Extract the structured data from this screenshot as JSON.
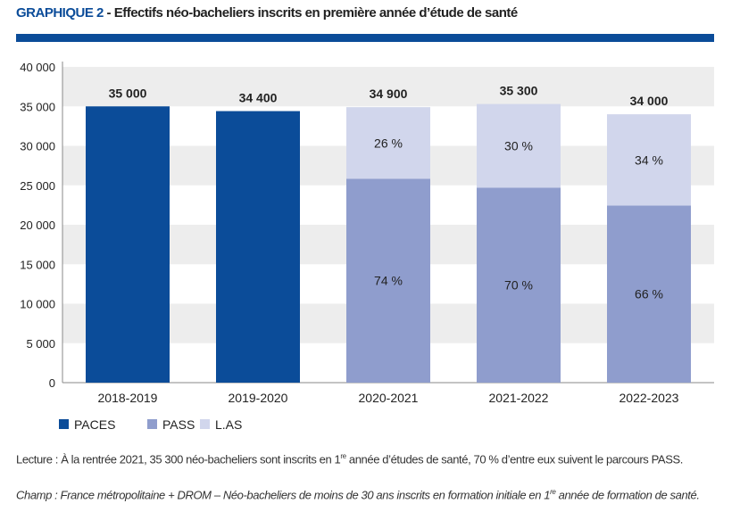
{
  "title": {
    "number": "GRAPHIQUE 2",
    "separator": " - ",
    "text": "Effectifs néo-bacheliers inscrits en première année d’étude de santé"
  },
  "colors": {
    "PACES": "#0b4c99",
    "PASS": "#8f9dcd",
    "L.AS": "#d1d6ec",
    "band": "#ededed",
    "rule": "#0b4c99"
  },
  "chart_data": {
    "type": "bar",
    "stacked": true,
    "categories": [
      "2018-2019",
      "2019-2020",
      "2020-2021",
      "2021-2022",
      "2022-2023"
    ],
    "series": [
      {
        "name": "PACES",
        "values": [
          35000,
          34400,
          0,
          0,
          0
        ],
        "labels": [
          "",
          "",
          "",
          "",
          ""
        ]
      },
      {
        "name": "PASS",
        "values": [
          0,
          0,
          25826,
          24710,
          22440
        ],
        "labels": [
          "",
          "",
          "74 %",
          "70 %",
          "66 %"
        ]
      },
      {
        "name": "L.AS",
        "values": [
          0,
          0,
          9074,
          10590,
          11560
        ],
        "labels": [
          "",
          "",
          "26 %",
          "30 %",
          "34 %"
        ]
      }
    ],
    "totals": [
      "35 000",
      "34 400",
      "34 900",
      "35 300",
      "34 000"
    ],
    "total_values": [
      35000,
      34400,
      34900,
      35300,
      34000
    ],
    "ylim": [
      0,
      40000
    ],
    "yticks": [
      0,
      5000,
      10000,
      15000,
      20000,
      25000,
      30000,
      35000,
      40000
    ],
    "ytick_labels": [
      "0",
      "5 000",
      "10 000",
      "15 000",
      "20 000",
      "25 000",
      "30 000",
      "35 000",
      "40 000"
    ],
    "grid": "alternating horizontal bands",
    "legend": "bottom-left"
  },
  "notes": {
    "lecture_a": "Lecture : À la rentrée 2021, 35 300 néo-bacheliers sont inscrits en 1",
    "lecture_sup": "re",
    "lecture_b": " année d’études de santé, 70 % d’entre eux suivent le parcours PASS.",
    "champ_a": "Champ : France métropolitaine + DROM – Néo-bacheliers de moins de 30 ans inscrits en formation initiale en 1",
    "champ_sup": "re",
    "champ_b": " année de formation de santé."
  }
}
